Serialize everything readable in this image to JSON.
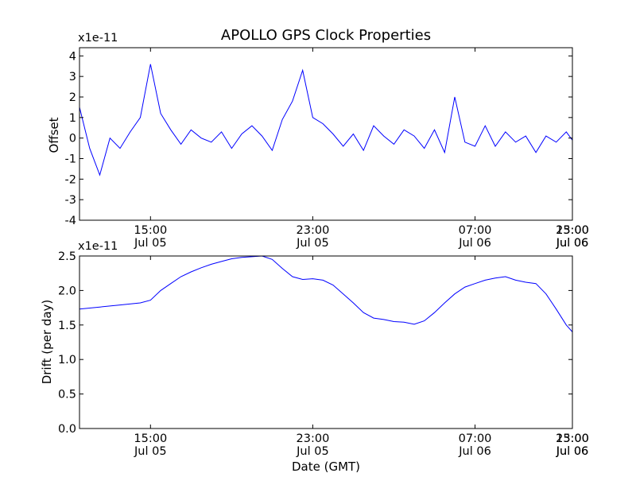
{
  "chart_data": [
    {
      "type": "line",
      "title": "APOLLO GPS Clock Properties",
      "xlabel": "",
      "ylabel": "Offset",
      "offset_text": "x1e-11",
      "ylim": [
        -4,
        4.4
      ],
      "xlim_hours": [
        11.5,
        35.8
      ],
      "yticks": [
        4,
        3,
        2,
        1,
        0,
        -1,
        -2,
        -3,
        -4
      ],
      "xticks": [
        {
          "hour": 15,
          "time": "15:00",
          "date": "Jul 05"
        },
        {
          "hour": 23,
          "time": "23:00",
          "date": "Jul 05"
        },
        {
          "hour": 31,
          "time": "07:00",
          "date": "Jul 06"
        },
        {
          "hour": 39,
          "time": "15:00",
          "date": "Jul 06"
        },
        {
          "hour": 47,
          "time": "23:00",
          "date": "Jul 06"
        }
      ],
      "color": "#0000ff",
      "series": [
        {
          "x_hours": [
            11.5,
            12.0,
            12.5,
            13.0,
            13.5,
            14.0,
            14.5,
            15.0,
            15.5,
            16.0,
            16.5,
            17.0,
            17.5,
            18.0,
            18.5,
            19.0,
            19.5,
            20.0,
            20.5,
            21.0,
            21.5,
            22.0,
            22.5,
            23.0,
            23.5,
            24.0,
            24.5,
            25.0,
            25.5,
            26.0,
            26.5,
            27.0,
            27.5,
            28.0,
            28.5,
            29.0,
            29.5,
            30.0,
            30.5,
            31.0,
            31.5,
            32.0,
            32.5,
            33.0,
            33.5,
            34.0,
            34.5,
            35.0,
            35.5,
            35.8
          ],
          "values": [
            1.5,
            -0.5,
            -1.8,
            0.0,
            -0.5,
            0.3,
            1.0,
            3.6,
            1.2,
            0.4,
            -0.3,
            0.4,
            0.0,
            -0.2,
            0.3,
            -0.5,
            0.2,
            0.6,
            0.1,
            -0.6,
            0.9,
            1.8,
            3.3,
            1.0,
            0.7,
            0.2,
            -0.4,
            0.2,
            -0.6,
            0.6,
            0.1,
            -0.3,
            0.4,
            0.1,
            -0.5,
            0.4,
            -0.7,
            2.0,
            -0.2,
            -0.4,
            0.6,
            -0.4,
            0.3,
            -0.2,
            0.1,
            -0.7,
            0.1,
            -0.2,
            0.3,
            -0.1
          ]
        }
      ]
    },
    {
      "type": "line",
      "title": "",
      "xlabel": "Date (GMT)",
      "ylabel": "Drift (per day)",
      "offset_text": "x1e-11",
      "ylim": [
        0.0,
        2.5
      ],
      "xlim_hours": [
        11.5,
        35.8
      ],
      "yticks": [
        "0.0",
        "0.5",
        "1.0",
        "1.5",
        "2.0",
        "2.5"
      ],
      "xticks": [
        {
          "hour": 15,
          "time": "15:00",
          "date": "Jul 05"
        },
        {
          "hour": 23,
          "time": "23:00",
          "date": "Jul 05"
        },
        {
          "hour": 31,
          "time": "07:00",
          "date": "Jul 06"
        },
        {
          "hour": 39,
          "time": "15:00",
          "date": "Jul 06"
        },
        {
          "hour": 47,
          "time": "23:00",
          "date": "Jul 06"
        }
      ],
      "color": "#0000ff",
      "series": [
        {
          "x_hours": [
            11.5,
            12.5,
            13.5,
            14.5,
            15.0,
            15.5,
            16.0,
            16.5,
            17.0,
            17.5,
            18.0,
            18.5,
            19.0,
            19.5,
            20.0,
            20.5,
            21.0,
            21.5,
            22.0,
            22.5,
            23.0,
            23.5,
            24.0,
            24.5,
            25.0,
            25.5,
            26.0,
            26.5,
            27.0,
            27.5,
            28.0,
            28.5,
            29.0,
            29.5,
            30.0,
            30.5,
            31.0,
            31.5,
            32.0,
            32.5,
            33.0,
            33.5,
            34.0,
            34.5,
            35.0,
            35.5,
            35.8
          ],
          "values": [
            1.73,
            1.76,
            1.79,
            1.82,
            1.86,
            2.0,
            2.1,
            2.2,
            2.27,
            2.33,
            2.38,
            2.42,
            2.46,
            2.48,
            2.49,
            2.5,
            2.45,
            2.32,
            2.2,
            2.16,
            2.17,
            2.15,
            2.08,
            1.95,
            1.82,
            1.68,
            1.6,
            1.58,
            1.55,
            1.54,
            1.51,
            1.56,
            1.68,
            1.82,
            1.95,
            2.05,
            2.1,
            2.15,
            2.18,
            2.2,
            2.15,
            2.12,
            2.1,
            1.95,
            1.73,
            1.5,
            1.4
          ]
        }
      ]
    }
  ]
}
